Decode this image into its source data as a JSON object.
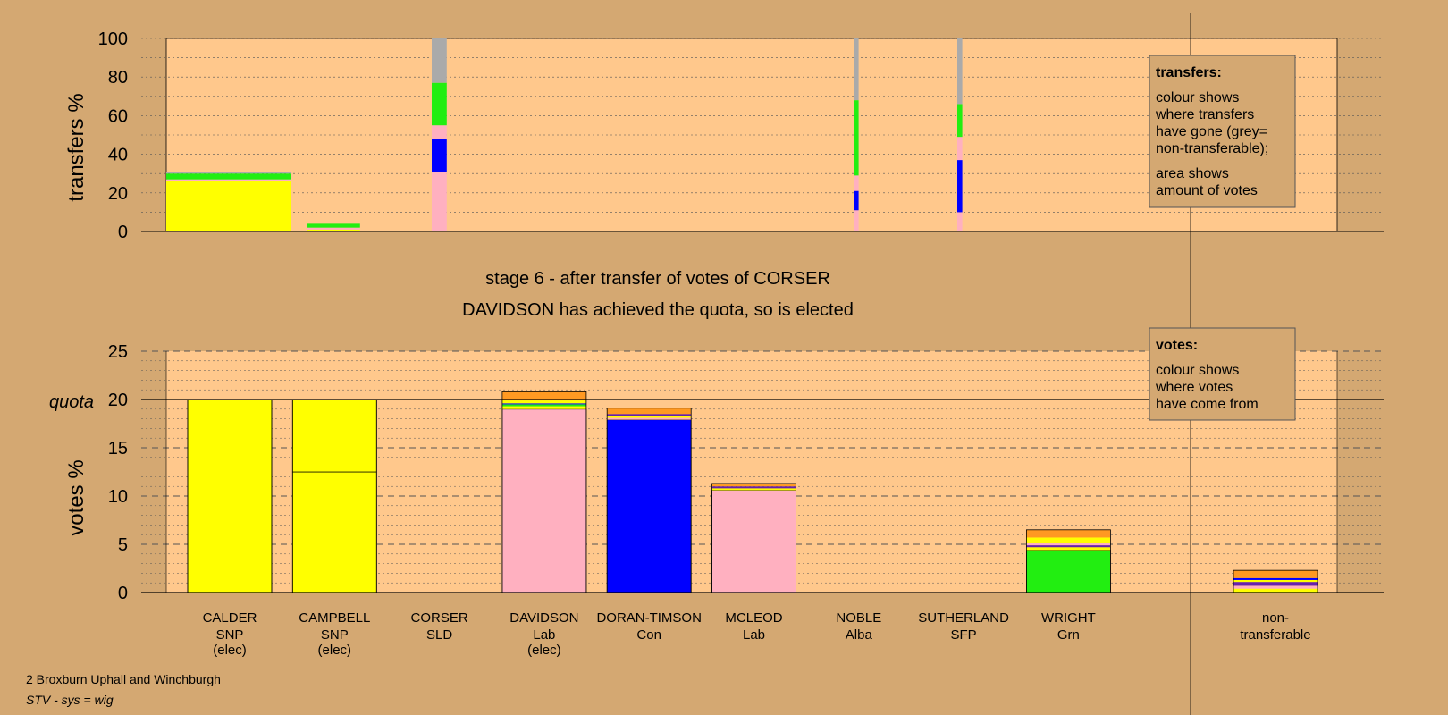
{
  "title_stage": "stage 6 - after transfer of votes of CORSER",
  "title_result": "DAVIDSON has achieved the quota, so is elected",
  "footer": {
    "ward": "2 Broxburn Uphall and Winchburgh",
    "system": "STV - sys = wig"
  },
  "legend_transfers": {
    "heading": "transfers:",
    "lines": [
      "colour shows",
      "where transfers",
      "have gone (grey=",
      "non-transferable);",
      "area shows",
      "amount of votes"
    ]
  },
  "legend_votes": {
    "heading": "votes:",
    "lines": [
      "colour shows",
      "where votes",
      "have come from"
    ]
  },
  "colors": {
    "background": "#d4a872",
    "plot_bg": "#ffc88c",
    "SNP": "#ffff00",
    "Lab": "#ffb0c0",
    "Con": "#0000ff",
    "Grn": "#22ee11",
    "SLD": "#ff9922",
    "Alba": "#6622aa",
    "SFP": "#993333",
    "nontransferable": "#aaaaaa"
  },
  "chart_data": [
    {
      "type": "bar",
      "name": "transfers",
      "ylabel": "transfers %",
      "ylim": [
        0,
        100
      ],
      "yticks": [
        0,
        20,
        40,
        60,
        80,
        100
      ],
      "columns": [
        {
          "candidate": "CALDER",
          "width_share": 1.0,
          "segments": [
            {
              "party": "SNP",
              "value": 26
            },
            {
              "party": "Lab",
              "value": 1
            },
            {
              "party": "Grn",
              "value": 3
            },
            {
              "party": "nontransferable",
              "value": 1
            }
          ]
        },
        {
          "candidate": "CAMPBELL",
          "width_share": 0.42,
          "segments": [
            {
              "party": "SNP",
              "value": 1
            },
            {
              "party": "Lab",
              "value": 1
            },
            {
              "party": "Grn",
              "value": 2
            }
          ]
        },
        {
          "candidate": "CORSER",
          "width_share": 0.12,
          "segments": [
            {
              "party": "Lab",
              "value": 31
            },
            {
              "party": "Con",
              "value": 17
            },
            {
              "party": "Lab",
              "value": 7
            },
            {
              "party": "Grn",
              "value": 22
            },
            {
              "party": "nontransferable",
              "value": 23
            }
          ]
        },
        {
          "candidate": "NOBLE",
          "width_share": 0.04,
          "segments": [
            {
              "party": "Lab",
              "value": 11
            },
            {
              "party": "Con",
              "value": 10
            },
            {
              "party": "Lab",
              "value": 8
            },
            {
              "party": "Grn",
              "value": 39
            },
            {
              "party": "nontransferable",
              "value": 32
            }
          ]
        },
        {
          "candidate": "SUTHERLAND",
          "width_share": 0.04,
          "segments": [
            {
              "party": "Lab",
              "value": 10
            },
            {
              "party": "Con",
              "value": 27
            },
            {
              "party": "Lab",
              "value": 12
            },
            {
              "party": "Grn",
              "value": 17
            },
            {
              "party": "nontransferable",
              "value": 34
            }
          ]
        }
      ]
    },
    {
      "type": "bar",
      "name": "votes",
      "ylabel": "votes %",
      "ylim": [
        0,
        25
      ],
      "yticks": [
        0,
        5,
        10,
        15,
        20,
        25
      ],
      "quota": 20,
      "quota_label": "quota",
      "candidates": [
        {
          "name": "CALDER",
          "party": "SNP",
          "note": "(elec)",
          "segments": [
            {
              "party": "SNP",
              "value": 20
            }
          ]
        },
        {
          "name": "CAMPBELL",
          "party": "SNP",
          "note": "(elec)",
          "segments": [
            {
              "party": "SNP",
              "value": 12.5
            },
            {
              "party": "SNP",
              "value": 7.5
            }
          ]
        },
        {
          "name": "CORSER",
          "party": "SLD",
          "note": "",
          "segments": []
        },
        {
          "name": "DAVIDSON",
          "party": "Lab",
          "note": "(elec)",
          "segments": [
            {
              "party": "Lab",
              "value": 19
            },
            {
              "party": "SNP",
              "value": 0.3
            },
            {
              "party": "Grn",
              "value": 0.2
            },
            {
              "party": "Con",
              "value": 0.1
            },
            {
              "party": "SNP",
              "value": 0.3
            },
            {
              "party": "SLD",
              "value": 0.9
            }
          ]
        },
        {
          "name": "DORAN-TIMSON",
          "party": "Con",
          "note": "",
          "segments": [
            {
              "party": "Con",
              "value": 17.9
            },
            {
              "party": "Lab",
              "value": 0.2
            },
            {
              "party": "SNP",
              "value": 0.2
            },
            {
              "party": "Alba",
              "value": 0.2
            },
            {
              "party": "SLD",
              "value": 0.6
            }
          ]
        },
        {
          "name": "MCLEOD",
          "party": "Lab",
          "note": "",
          "segments": [
            {
              "party": "Lab",
              "value": 10.6
            },
            {
              "party": "SNP",
              "value": 0.2
            },
            {
              "party": "Alba",
              "value": 0.2
            },
            {
              "party": "SLD",
              "value": 0.3
            }
          ]
        },
        {
          "name": "NOBLE",
          "party": "Alba",
          "note": "",
          "segments": []
        },
        {
          "name": "SUTHERLAND",
          "party": "SFP",
          "note": "",
          "segments": []
        },
        {
          "name": "WRIGHT",
          "party": "Grn",
          "note": "",
          "segments": [
            {
              "party": "Grn",
              "value": 4.4
            },
            {
              "party": "SNP",
              "value": 0.3
            },
            {
              "party": "Alba",
              "value": 0.2
            },
            {
              "party": "Lab",
              "value": 0.2
            },
            {
              "party": "SNP",
              "value": 0.6
            },
            {
              "party": "SLD",
              "value": 0.8
            }
          ]
        },
        {
          "name": "non-",
          "party": "transferable",
          "note": "",
          "segments": [
            {
              "party": "SNP",
              "value": 0.4
            },
            {
              "party": "Lab",
              "value": 0.3
            },
            {
              "party": "Alba",
              "value": 0.4
            },
            {
              "party": "SNP",
              "value": 0.2
            },
            {
              "party": "Con",
              "value": 0.2
            },
            {
              "party": "SLD",
              "value": 0.8
            }
          ]
        }
      ]
    }
  ]
}
